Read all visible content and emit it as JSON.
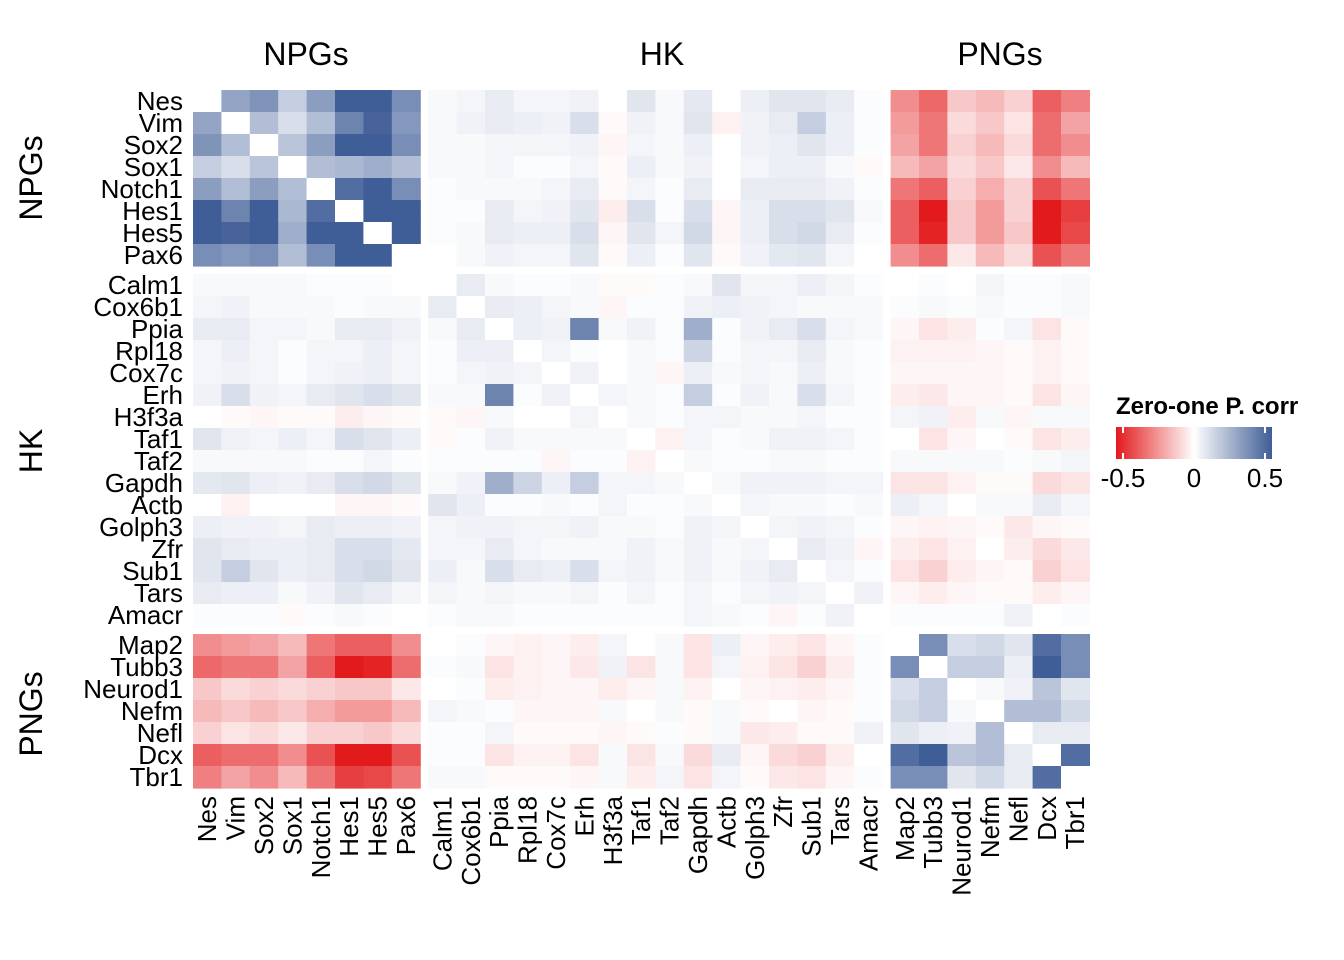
{
  "chart_data": {
    "type": "heatmap",
    "title": "",
    "groups": [
      {
        "name": "NPGs",
        "genes": [
          "Nes",
          "Vim",
          "Sox2",
          "Sox1",
          "Notch1",
          "Hes1",
          "Hes5",
          "Pax6"
        ]
      },
      {
        "name": "HK",
        "genes": [
          "Calm1",
          "Cox6b1",
          "Ppia",
          "Rpl18",
          "Cox7c",
          "Erh",
          "H3f3a",
          "Taf1",
          "Taf2",
          "Gapdh",
          "Actb",
          "Golph3",
          "Zfr",
          "Sub1",
          "Tars",
          "Amacr"
        ]
      },
      {
        "name": "PNGs",
        "genes": [
          "Map2",
          "Tubb3",
          "Neurod1",
          "Nefm",
          "Nefl",
          "Dcx",
          "Tbr1"
        ]
      }
    ],
    "genes": [
      "Nes",
      "Vim",
      "Sox2",
      "Sox1",
      "Notch1",
      "Hes1",
      "Hes5",
      "Pax6",
      "Calm1",
      "Cox6b1",
      "Ppia",
      "Rpl18",
      "Cox7c",
      "Erh",
      "H3f3a",
      "Taf1",
      "Taf2",
      "Gapdh",
      "Actb",
      "Golph3",
      "Zfr",
      "Sub1",
      "Tars",
      "Amacr",
      "Map2",
      "Tubb3",
      "Neurod1",
      "Nefm",
      "Nefl",
      "Dcx",
      "Tbr1"
    ],
    "values": [
      [
        0,
        0.28,
        0.33,
        0.15,
        0.3,
        0.52,
        0.5,
        0.35,
        0.02,
        0.03,
        0.06,
        0.03,
        0.03,
        0.04,
        0,
        0.08,
        0.02,
        0.07,
        0,
        0.05,
        0.08,
        0.08,
        0.06,
        0.01,
        -0.25,
        -0.33,
        -0.12,
        -0.15,
        -0.1,
        -0.35,
        -0.28
      ],
      [
        0.28,
        0,
        0.2,
        0.1,
        0.2,
        0.38,
        0.48,
        0.32,
        0.02,
        0.04,
        0.06,
        0.05,
        0.04,
        0.1,
        -0.01,
        0.04,
        0.02,
        0.08,
        -0.03,
        0.04,
        0.06,
        0.15,
        0.05,
        0.01,
        -0.22,
        -0.3,
        -0.08,
        -0.12,
        -0.06,
        -0.32,
        -0.2
      ],
      [
        0.33,
        0.2,
        0,
        0.18,
        0.3,
        0.5,
        0.5,
        0.35,
        0.02,
        0.02,
        0.03,
        0.03,
        0.03,
        0.04,
        -0.02,
        0.03,
        0.02,
        0.05,
        0,
        0.04,
        0.05,
        0.08,
        0.05,
        0.01,
        -0.2,
        -0.3,
        -0.1,
        -0.15,
        -0.08,
        -0.32,
        -0.25
      ],
      [
        0.15,
        0.1,
        0.18,
        0,
        0.2,
        0.22,
        0.25,
        0.2,
        0.02,
        0.02,
        0.03,
        0.01,
        0.01,
        0.03,
        -0.01,
        0.05,
        0.02,
        0.04,
        0,
        0.03,
        0.05,
        0.05,
        0.02,
        -0.01,
        -0.15,
        -0.2,
        -0.08,
        -0.12,
        -0.05,
        -0.25,
        -0.15
      ],
      [
        0.3,
        0.2,
        0.3,
        0.2,
        0,
        0.45,
        0.5,
        0.35,
        0.01,
        0.02,
        0.02,
        0.02,
        0.03,
        0.06,
        -0.01,
        0.03,
        0.01,
        0.06,
        0,
        0.06,
        0.06,
        0.06,
        0.04,
        0.01,
        -0.3,
        -0.35,
        -0.1,
        -0.18,
        -0.1,
        -0.38,
        -0.3
      ],
      [
        0.52,
        0.38,
        0.5,
        0.22,
        0.45,
        0,
        0.7,
        0.5,
        0.01,
        0.01,
        0.06,
        0.03,
        0.04,
        0.08,
        -0.04,
        0.1,
        0.01,
        0.1,
        -0.02,
        0.05,
        0.1,
        0.1,
        0.08,
        0.02,
        -0.35,
        -0.55,
        -0.12,
        -0.22,
        -0.1,
        -0.6,
        -0.42
      ],
      [
        0.5,
        0.48,
        0.5,
        0.25,
        0.5,
        0.7,
        0,
        0.6,
        0.01,
        0.02,
        0.06,
        0.05,
        0.05,
        0.1,
        -0.02,
        0.08,
        0.03,
        0.12,
        -0.02,
        0.05,
        0.1,
        0.12,
        0.06,
        0.01,
        -0.35,
        -0.48,
        -0.12,
        -0.22,
        -0.12,
        -0.55,
        -0.4
      ],
      [
        0.35,
        0.32,
        0.35,
        0.2,
        0.35,
        0.5,
        0.6,
        0,
        0,
        0.02,
        0.04,
        0.03,
        0.03,
        0.08,
        -0.01,
        0.05,
        0.01,
        0.08,
        -0.01,
        0.04,
        0.07,
        0.08,
        0.03,
        0,
        -0.25,
        -0.32,
        -0.05,
        -0.15,
        -0.08,
        -0.38,
        -0.3
      ],
      [
        0.02,
        0.02,
        0.02,
        0.02,
        0.01,
        0.01,
        0.01,
        0,
        0,
        0.06,
        0.02,
        0.01,
        0.01,
        0.02,
        -0.01,
        -0.01,
        0.01,
        0.02,
        0.08,
        0.03,
        0.03,
        0.05,
        0.03,
        0.01,
        0,
        0.01,
        0,
        0.03,
        0.01,
        0.01,
        0.02
      ],
      [
        0.03,
        0.04,
        0.02,
        0.02,
        0.02,
        0.01,
        0.02,
        0.02,
        0.06,
        0,
        0.06,
        0.05,
        0.03,
        0.02,
        -0.02,
        0.01,
        0.01,
        0.04,
        0.05,
        0.04,
        0.03,
        0.02,
        0.02,
        0.02,
        0.01,
        0.02,
        0.01,
        0.02,
        0.01,
        0.01,
        0.02
      ],
      [
        0.06,
        0.06,
        0.03,
        0.03,
        0.02,
        0.06,
        0.06,
        0.04,
        0.02,
        0.06,
        0,
        0.05,
        0.04,
        0.38,
        0.02,
        0.04,
        0.01,
        0.25,
        0.01,
        0.04,
        0.06,
        0.1,
        0.03,
        0.02,
        -0.02,
        -0.06,
        -0.04,
        0.01,
        0.03,
        -0.06,
        -0.01
      ],
      [
        0.03,
        0.05,
        0.03,
        0.01,
        0.03,
        0.03,
        0.05,
        0.03,
        0.01,
        0.05,
        0.05,
        0,
        0.03,
        0.01,
        0,
        0.02,
        0.01,
        0.13,
        0.01,
        0.03,
        0.03,
        0.06,
        0.02,
        0.01,
        -0.03,
        -0.03,
        -0.03,
        -0.02,
        -0.01,
        -0.03,
        -0.01
      ],
      [
        0.03,
        0.04,
        0.03,
        0.01,
        0.03,
        0.04,
        0.05,
        0.03,
        0.01,
        0.03,
        0.04,
        0.03,
        0,
        0.04,
        0,
        0.02,
        -0.02,
        0.05,
        0.02,
        0.03,
        0.02,
        0.05,
        0.02,
        0.01,
        -0.02,
        -0.02,
        -0.02,
        -0.02,
        -0.01,
        -0.03,
        -0.01
      ],
      [
        0.04,
        0.1,
        0.04,
        0.03,
        0.06,
        0.08,
        0.1,
        0.08,
        0.02,
        0.02,
        0.38,
        0.01,
        0.04,
        0,
        0.03,
        0.02,
        0.01,
        0.15,
        0.01,
        0.04,
        0.02,
        0.1,
        0.03,
        0.01,
        -0.04,
        -0.05,
        -0.02,
        -0.02,
        -0.01,
        -0.06,
        -0.02
      ],
      [
        0,
        -0.01,
        -0.02,
        -0.01,
        -0.01,
        -0.04,
        -0.02,
        -0.01,
        -0.01,
        -0.02,
        0.02,
        0,
        0,
        0.03,
        0,
        0.02,
        0.01,
        0.03,
        0.03,
        0.02,
        0.02,
        0.03,
        0.01,
        0.01,
        0.03,
        0.04,
        -0.04,
        0.02,
        -0.02,
        0.02,
        0.02
      ],
      [
        0.08,
        0.04,
        0.03,
        0.05,
        0.03,
        0.1,
        0.08,
        0.05,
        -0.01,
        0.01,
        0.04,
        0.02,
        0.02,
        0.02,
        0.02,
        0,
        -0.03,
        0.03,
        0.01,
        0.02,
        0.04,
        0.04,
        0.03,
        0.01,
        0,
        -0.06,
        -0.02,
        0,
        -0.01,
        -0.06,
        -0.04
      ],
      [
        0.02,
        0.02,
        0.02,
        0.02,
        0.01,
        0.01,
        0.03,
        0.01,
        0.01,
        0.01,
        0.01,
        0.01,
        -0.02,
        0.01,
        0.01,
        -0.03,
        0,
        0.02,
        0.01,
        0.01,
        0.02,
        0.02,
        0.01,
        0.01,
        0.02,
        0.02,
        0.02,
        0.02,
        0.01,
        0.02,
        0.03
      ],
      [
        0.07,
        0.08,
        0.05,
        0.04,
        0.06,
        0.1,
        0.12,
        0.08,
        0.02,
        0.04,
        0.25,
        0.13,
        0.05,
        0.15,
        0.03,
        0.03,
        0.02,
        0,
        0.02,
        0.04,
        0.04,
        0.04,
        0.03,
        0.03,
        -0.06,
        -0.06,
        -0.03,
        -0.01,
        -0.01,
        -0.08,
        -0.06
      ],
      [
        0,
        -0.03,
        0,
        0,
        0,
        -0.02,
        -0.02,
        -0.01,
        0.08,
        0.05,
        0.01,
        0.01,
        0.02,
        0.01,
        0.03,
        0.01,
        0.01,
        0.02,
        0,
        0.03,
        0.02,
        0.02,
        0.01,
        0.02,
        0.05,
        0.03,
        0,
        0.02,
        0.02,
        0.06,
        0.03
      ],
      [
        0.05,
        0.04,
        0.04,
        0.03,
        0.06,
        0.05,
        0.05,
        0.04,
        0.03,
        0.04,
        0.04,
        0.03,
        0.03,
        0.04,
        0.02,
        0.02,
        0.01,
        0.04,
        0.03,
        0,
        0.03,
        0.04,
        0.03,
        0.01,
        -0.02,
        -0.03,
        -0.02,
        -0.01,
        -0.05,
        -0.02,
        -0.01
      ],
      [
        0.08,
        0.06,
        0.05,
        0.05,
        0.06,
        0.1,
        0.1,
        0.07,
        0.03,
        0.03,
        0.06,
        0.03,
        0.02,
        0.02,
        0.02,
        0.04,
        0.02,
        0.04,
        0.02,
        0.03,
        0,
        0.06,
        0.04,
        -0.02,
        -0.04,
        -0.06,
        -0.03,
        0,
        -0.04,
        -0.08,
        -0.05
      ],
      [
        0.08,
        0.15,
        0.08,
        0.05,
        0.06,
        0.1,
        0.12,
        0.08,
        0.05,
        0.02,
        0.1,
        0.06,
        0.05,
        0.1,
        0.03,
        0.04,
        0.02,
        0.04,
        0.02,
        0.04,
        0.06,
        0,
        0.03,
        0.01,
        -0.06,
        -0.1,
        -0.04,
        -0.02,
        -0.01,
        -0.1,
        -0.06
      ],
      [
        0.06,
        0.05,
        0.05,
        0.02,
        0.04,
        0.08,
        0.06,
        0.03,
        0.03,
        0.02,
        0.03,
        0.02,
        0.02,
        0.03,
        0.01,
        0.03,
        0.01,
        0.03,
        0.01,
        0.03,
        0.04,
        0.03,
        0,
        0.04,
        -0.02,
        -0.04,
        -0.02,
        -0.01,
        -0.01,
        -0.04,
        -0.02
      ],
      [
        0.01,
        0.01,
        0.01,
        -0.01,
        0.01,
        0.02,
        0.01,
        0,
        0.01,
        0.02,
        0.02,
        0.01,
        0.01,
        0.01,
        0.01,
        0.01,
        0.01,
        0.03,
        0.02,
        0.01,
        -0.02,
        0.01,
        0.04,
        0,
        0.01,
        0.01,
        0.01,
        0.01,
        0.04,
        0,
        0.01
      ],
      [
        -0.25,
        -0.22,
        -0.2,
        -0.15,
        -0.3,
        -0.35,
        -0.35,
        -0.25,
        0,
        0.01,
        -0.02,
        -0.03,
        -0.02,
        -0.04,
        0.03,
        0,
        0.02,
        -0.06,
        0.05,
        -0.02,
        -0.04,
        -0.06,
        -0.02,
        0.01,
        0,
        0.35,
        0.1,
        0.12,
        0.08,
        0.45,
        0.35
      ],
      [
        -0.33,
        -0.3,
        -0.3,
        -0.2,
        -0.35,
        -0.55,
        -0.48,
        -0.32,
        0.01,
        0.02,
        -0.06,
        -0.03,
        -0.02,
        -0.05,
        0.04,
        -0.06,
        0.02,
        -0.06,
        0.03,
        -0.03,
        -0.06,
        -0.1,
        -0.04,
        0.01,
        0.35,
        0,
        0.15,
        0.15,
        0.05,
        0.5,
        0.35
      ],
      [
        -0.12,
        -0.08,
        -0.1,
        -0.08,
        -0.1,
        -0.12,
        -0.12,
        -0.05,
        0,
        0.01,
        -0.04,
        -0.03,
        -0.02,
        -0.02,
        -0.04,
        -0.02,
        0.02,
        -0.03,
        0,
        -0.02,
        -0.03,
        -0.04,
        -0.02,
        0.01,
        0.1,
        0.15,
        0,
        0.02,
        0.04,
        0.18,
        0.08
      ],
      [
        -0.15,
        -0.12,
        -0.15,
        -0.12,
        -0.18,
        -0.22,
        -0.22,
        -0.15,
        0.03,
        0.02,
        0.01,
        -0.02,
        -0.02,
        -0.02,
        0.02,
        0,
        0.02,
        -0.01,
        0.02,
        -0.01,
        0,
        -0.02,
        -0.01,
        0.01,
        0.12,
        0.15,
        0.02,
        0,
        0.2,
        0.2,
        0.12
      ],
      [
        -0.1,
        -0.06,
        -0.08,
        -0.05,
        -0.1,
        -0.1,
        -0.12,
        -0.08,
        0.01,
        0.01,
        0.03,
        -0.01,
        -0.01,
        -0.01,
        -0.02,
        -0.01,
        0.01,
        -0.01,
        0.02,
        -0.05,
        -0.04,
        -0.01,
        -0.01,
        0.04,
        0.08,
        0.05,
        0.04,
        0.2,
        0,
        0.06,
        0.06
      ],
      [
        -0.35,
        -0.32,
        -0.32,
        -0.25,
        -0.38,
        -0.6,
        -0.55,
        -0.38,
        0.01,
        0.01,
        -0.06,
        -0.03,
        -0.03,
        -0.06,
        0.02,
        -0.06,
        0.02,
        -0.08,
        0.06,
        -0.02,
        -0.08,
        -0.1,
        -0.04,
        0,
        0.45,
        0.5,
        0.18,
        0.2,
        0.06,
        0,
        0.45
      ],
      [
        -0.28,
        -0.2,
        -0.25,
        -0.15,
        -0.3,
        -0.42,
        -0.4,
        -0.3,
        0.02,
        0.02,
        -0.01,
        -0.01,
        -0.01,
        -0.02,
        0.02,
        -0.04,
        0.03,
        -0.06,
        0.03,
        -0.01,
        -0.05,
        -0.06,
        -0.02,
        0.01,
        0.35,
        0.35,
        0.08,
        0.12,
        0.06,
        0.45,
        0
      ]
    ],
    "diagonal": "blank",
    "color_scale": {
      "low": "#e31a1c",
      "mid": "#ffffff",
      "high": "#3f5d96",
      "domain": [
        -0.5,
        0.5
      ]
    },
    "legend": {
      "title": "Zero-one P. corr",
      "ticks": [
        "-0.5",
        "0",
        "0.5"
      ],
      "placement": "right"
    }
  }
}
